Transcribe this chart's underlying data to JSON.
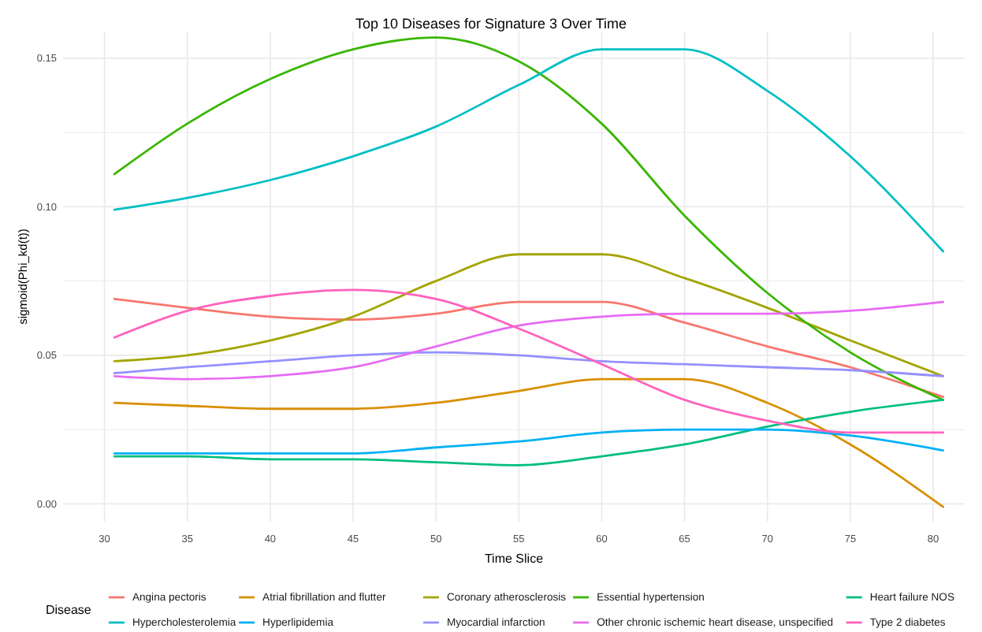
{
  "chart_data": {
    "type": "line",
    "title": "Top 10 Diseases for Signature 3 Over Time",
    "xlabel": "Time Slice",
    "ylabel": "sigmoid(Phi_kd(t))",
    "legend_title": "Disease",
    "legend": "bottom",
    "grid": true,
    "marker": "none",
    "line_style": "solid",
    "x": [
      30.6,
      35,
      40,
      45,
      50,
      55,
      60,
      65,
      70,
      75,
      80.6
    ],
    "xlim": [
      27.5,
      81.9
    ],
    "xticks": [
      30,
      35,
      40,
      45,
      50,
      55,
      60,
      65,
      70,
      75,
      80
    ],
    "ylim": [
      -0.006,
      0.159
    ],
    "yticks": [
      {
        "value": 0,
        "label": "0.00"
      },
      {
        "value": 0.025,
        "label": null
      },
      {
        "value": 0.05,
        "label": "0.05"
      },
      {
        "value": 0.075,
        "label": null
      },
      {
        "value": 0.1,
        "label": "0.10"
      },
      {
        "value": 0.125,
        "label": null
      },
      {
        "value": 0.15,
        "label": "0.15"
      }
    ],
    "series": [
      {
        "name": "Angina pectoris",
        "color": "#f8766d",
        "values": [
          0.069,
          0.066,
          0.063,
          0.062,
          0.064,
          0.068,
          0.068,
          0.061,
          0.053,
          0.046,
          0.036
        ]
      },
      {
        "name": "Atrial fibrillation and flutter",
        "color": "#d89000",
        "values": [
          0.034,
          0.033,
          0.032,
          0.032,
          0.034,
          0.038,
          0.042,
          0.042,
          0.034,
          0.02,
          -0.001
        ]
      },
      {
        "name": "Coronary atherosclerosis",
        "color": "#a3a500",
        "values": [
          0.048,
          0.05,
          0.055,
          0.063,
          0.075,
          0.084,
          0.084,
          0.076,
          0.066,
          0.055,
          0.043
        ]
      },
      {
        "name": "Essential hypertension",
        "color": "#39b600",
        "values": [
          0.111,
          0.128,
          0.143,
          0.153,
          0.157,
          0.149,
          0.128,
          0.097,
          0.071,
          0.051,
          0.035
        ]
      },
      {
        "name": "Heart failure NOS",
        "color": "#00bf7d",
        "values": [
          0.016,
          0.016,
          0.015,
          0.015,
          0.014,
          0.013,
          0.016,
          0.02,
          0.026,
          0.031,
          0.035
        ]
      },
      {
        "name": "Hypercholesterolemia",
        "color": "#00bfc4",
        "values": [
          0.099,
          0.103,
          0.109,
          0.117,
          0.127,
          0.141,
          0.153,
          0.153,
          0.139,
          0.117,
          0.085
        ]
      },
      {
        "name": "Hyperlipidemia",
        "color": "#00b0f6",
        "values": [
          0.017,
          0.017,
          0.017,
          0.017,
          0.019,
          0.021,
          0.024,
          0.025,
          0.025,
          0.023,
          0.018
        ]
      },
      {
        "name": "Myocardial infarction",
        "color": "#9590ff",
        "values": [
          0.044,
          0.046,
          0.048,
          0.05,
          0.051,
          0.05,
          0.048,
          0.047,
          0.046,
          0.045,
          0.043
        ]
      },
      {
        "name": "Other chronic ischemic heart disease, unspecified",
        "color": "#e76bf3",
        "values": [
          0.043,
          0.042,
          0.043,
          0.046,
          0.053,
          0.06,
          0.063,
          0.064,
          0.064,
          0.065,
          0.068
        ]
      },
      {
        "name": "Type 2 diabetes",
        "color": "#ff62bc",
        "values": [
          0.056,
          0.065,
          0.07,
          0.072,
          0.069,
          0.059,
          0.047,
          0.035,
          0.028,
          0.024,
          0.024
        ]
      }
    ]
  }
}
